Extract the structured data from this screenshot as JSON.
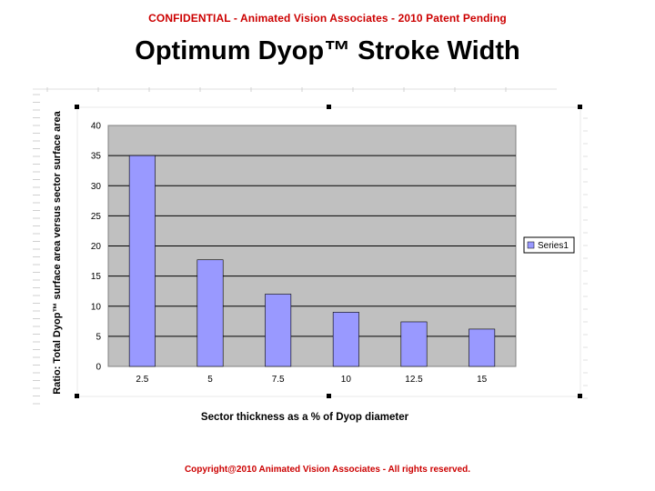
{
  "header": {
    "confidential": "CONFIDENTIAL - Animated Vision Associates - 2010 Patent Pending",
    "title": "Optimum Dyop™ Stroke Width"
  },
  "footer": {
    "copyright": "Copyright@2010 Animated Vision Associates - All rights reserved."
  },
  "colors": {
    "bar_fill": "#9999ff",
    "plot_bg": "#c0c0c0",
    "confidential_text": "#cc0000"
  },
  "chart_data": {
    "type": "bar",
    "title": "",
    "xlabel": "Sector thickness as a % of Dyop diameter",
    "ylabel": "Ratio: Total Dyop™ surface area versus sector surface area",
    "categories": [
      "2.5",
      "5",
      "7.5",
      "10",
      "12.5",
      "15"
    ],
    "series": [
      {
        "name": "Series1",
        "values": [
          35,
          17.7,
          12,
          9,
          7.4,
          6.2
        ]
      }
    ],
    "yticks": [
      "0",
      "5",
      "10",
      "15",
      "20",
      "25",
      "30",
      "35",
      "40"
    ],
    "ylim": [
      0,
      40
    ],
    "grid": true,
    "legend": "right"
  }
}
